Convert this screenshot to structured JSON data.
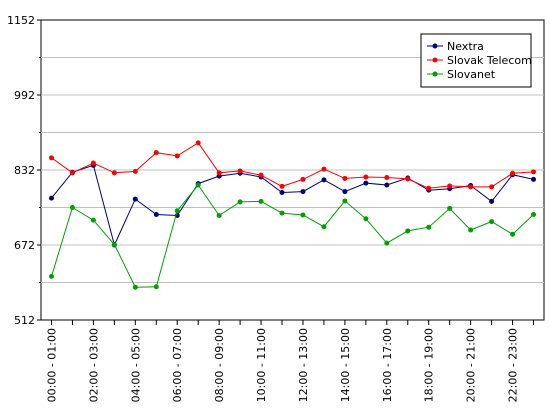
{
  "chart_data": {
    "type": "line",
    "title": "",
    "xlabel": "",
    "ylabel": "",
    "ylim": [
      512,
      1152
    ],
    "y_ticks": [
      "1152",
      "992",
      "832",
      "672",
      "512"
    ],
    "grid": true,
    "legend_position": "top-right",
    "x": [
      "00:00 - 01:00",
      "01:00 - 02:00",
      "02:00 - 03:00",
      "03:00 - 04:00",
      "04:00 - 05:00",
      "05:00 - 06:00",
      "06:00 - 07:00",
      "07:00 - 08:00",
      "08:00 - 09:00",
      "09:00 - 10:00",
      "10:00 - 11:00",
      "11:00 - 12:00",
      "12:00 - 13:00",
      "13:00 - 14:00",
      "14:00 - 15:00",
      "15:00 - 16:00",
      "16:00 - 17:00",
      "17:00 - 18:00",
      "18:00 - 19:00",
      "19:00 - 20:00",
      "20:00 - 21:00",
      "21:00 - 22:00",
      "22:00 - 23:00",
      "23:00 - 24:00"
    ],
    "x_tick_labels": [
      "00:00 - 01:00",
      "02:00 - 03:00",
      "04:00 - 05:00",
      "06:00 - 07:00",
      "08:00 - 09:00",
      "10:00 - 11:00",
      "12:00 - 13:00",
      "14:00 - 15:00",
      "16:00 - 17:00",
      "18:00 - 19:00",
      "20:00 - 21:00",
      "22:00 - 23:00"
    ],
    "series": [
      {
        "name": "Nextra",
        "color": "#000080",
        "values": [
          772,
          827,
          842,
          672,
          770,
          737,
          735,
          803,
          819,
          825,
          817,
          784,
          786,
          811,
          786,
          804,
          800,
          815,
          789,
          792,
          799,
          765,
          822,
          812
        ]
      },
      {
        "name": "Slovak Telecom",
        "color": "#ff0000",
        "values": [
          858,
          826,
          847,
          826,
          829,
          869,
          862,
          890,
          826,
          830,
          821,
          797,
          812,
          834,
          814,
          817,
          816,
          813,
          793,
          798,
          796,
          796,
          825,
          828
        ]
      },
      {
        "name": "Slovanet",
        "color": "#00a000",
        "values": [
          605,
          752,
          725,
          673,
          582,
          583,
          745,
          800,
          735,
          764,
          765,
          740,
          736,
          711,
          766,
          728,
          676,
          702,
          710,
          750,
          704,
          722,
          695,
          737
        ]
      }
    ]
  }
}
